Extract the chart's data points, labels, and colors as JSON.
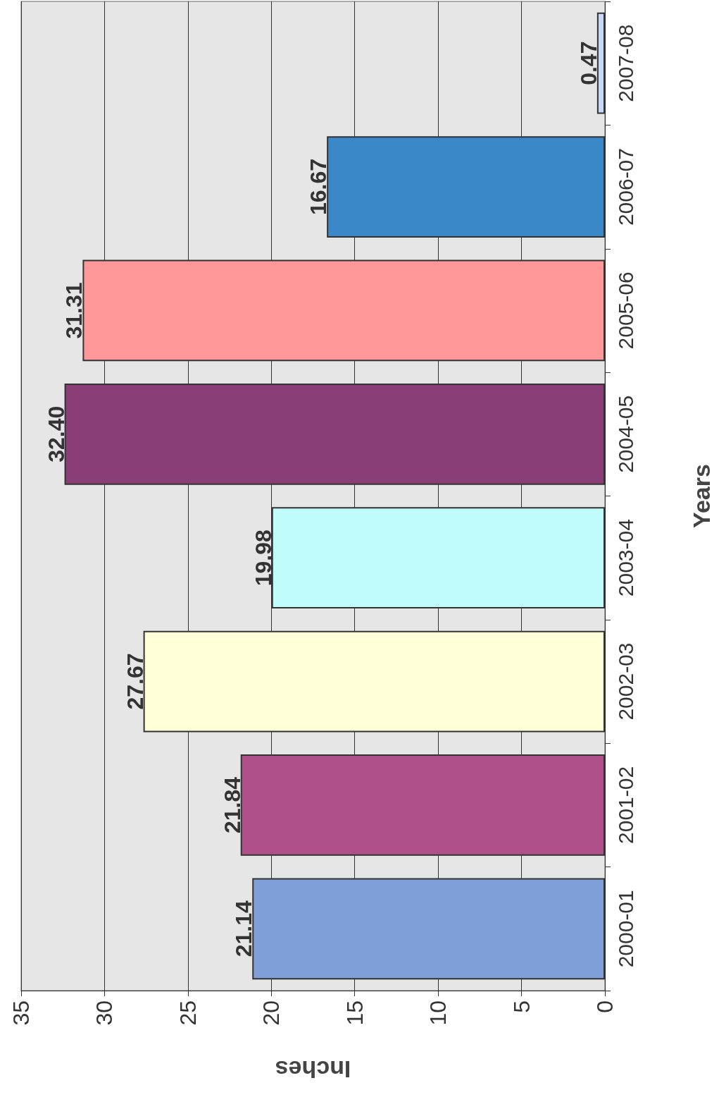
{
  "chart_data": {
    "type": "bar",
    "orientation": "horizontal",
    "xlabel": "Inches",
    "ylabel": "Years",
    "categories": [
      "2007-08",
      "2006-07",
      "2005-06",
      "2004-05",
      "2003-04",
      "2002-03",
      "2001-02",
      "2000-01"
    ],
    "values": [
      0.47,
      16.67,
      31.31,
      32.4,
      19.98,
      27.67,
      21.84,
      21.14
    ],
    "value_labels": [
      "0.47",
      "16.67",
      "31.31",
      "32.40",
      "19.98",
      "27.67",
      "21.84",
      "21.14"
    ],
    "colors": [
      "#c8d8f8",
      "#3a88c8",
      "#ff9898",
      "#8a3e78",
      "#c0fcfc",
      "#ffffd8",
      "#b0508a",
      "#7f9fd8"
    ],
    "xlim": [
      35,
      0
    ],
    "xticks": [
      35,
      30,
      25,
      20,
      15,
      10,
      5,
      0
    ],
    "grid": "x"
  }
}
